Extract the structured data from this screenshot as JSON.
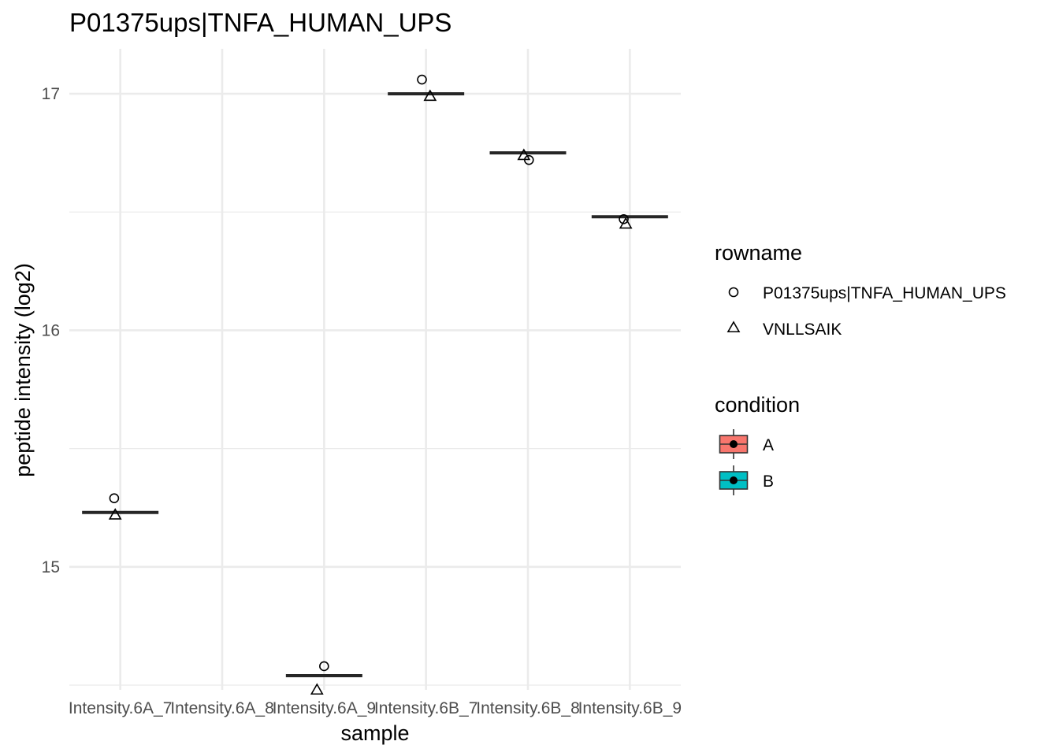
{
  "chart_data": {
    "type": "boxplot",
    "title": "P01375ups|TNFA_HUMAN_UPS",
    "xlabel": "sample",
    "ylabel": "peptide intensity (log2)",
    "categories": [
      "Intensity.6A_7",
      "Intensity.6A_8",
      "Intensity.6A_9",
      "Intensity.6B_7",
      "Intensity.6B_8",
      "Intensity.6B_9"
    ],
    "ylim": [
      14.48,
      17.19
    ],
    "y_ticks": [
      15,
      16,
      17
    ],
    "y_tick_labels": [
      "15",
      "16",
      "17"
    ],
    "grid": true,
    "medians": [
      15.23,
      null,
      14.54,
      17.0,
      16.75,
      16.48
    ],
    "condition_of_category": [
      "A",
      "A",
      "A",
      "B",
      "B",
      "B"
    ],
    "series": [
      {
        "name": "P01375ups|TNFA_HUMAN_UPS",
        "shape": "circle",
        "values": [
          15.29,
          null,
          14.58,
          17.06,
          16.72,
          16.47
        ]
      },
      {
        "name": "VNLLSAIK",
        "shape": "triangle",
        "values": [
          15.22,
          null,
          14.48,
          16.99,
          16.74,
          16.45
        ]
      }
    ],
    "legends": [
      {
        "title": "rowname",
        "items": [
          {
            "label": "P01375ups|TNFA_HUMAN_UPS",
            "shape": "circle"
          },
          {
            "label": "VNLLSAIK",
            "shape": "triangle"
          }
        ]
      },
      {
        "title": "condition",
        "items": [
          {
            "label": "A",
            "color": "#F8766D"
          },
          {
            "label": "B",
            "color": "#00BFC4"
          }
        ]
      }
    ],
    "legend_position": "right",
    "colors": {
      "grid": "#ebebeb",
      "median_line": "#262626",
      "tick_text": "#4d4d4d"
    }
  }
}
